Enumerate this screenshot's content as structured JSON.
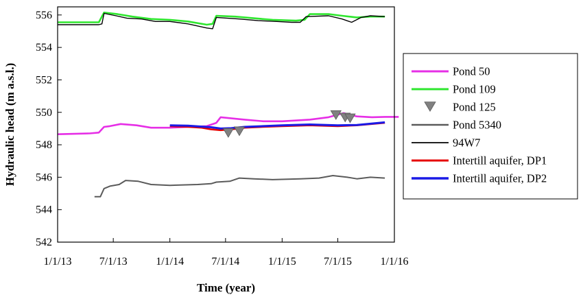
{
  "chart_data": {
    "type": "line",
    "title": "",
    "xlabel": "Time (year)",
    "ylabel": "Hydraulic head (m a.s.l.)",
    "xlim": [
      "2013-01-01",
      "2016-01-01"
    ],
    "ylim": [
      542,
      556.5
    ],
    "x_ticks": [
      "1/1/13",
      "7/1/13",
      "1/1/14",
      "7/1/14",
      "1/1/15",
      "7/1/15",
      "1/1/16"
    ],
    "y_ticks": [
      "542",
      "544",
      "546",
      "548",
      "550",
      "552",
      "554",
      "556"
    ],
    "legend_position": "right",
    "series": [
      {
        "name": "Pond 50",
        "kind": "line",
        "color": "#e62ee6",
        "points": [
          [
            "2013-01-01",
            548.65
          ],
          [
            "2013-04-15",
            548.7
          ],
          [
            "2013-05-15",
            548.75
          ],
          [
            "2013-06-01",
            549.1
          ],
          [
            "2013-06-20",
            549.15
          ],
          [
            "2013-07-25",
            549.28
          ],
          [
            "2013-09-15",
            549.2
          ],
          [
            "2013-11-01",
            549.05
          ],
          [
            "2014-01-01",
            549.05
          ],
          [
            "2014-03-01",
            549.1
          ],
          [
            "2014-05-01",
            549.15
          ],
          [
            "2014-06-01",
            549.35
          ],
          [
            "2014-06-15",
            549.7
          ],
          [
            "2014-09-01",
            549.55
          ],
          [
            "2014-11-01",
            549.45
          ],
          [
            "2015-01-01",
            549.45
          ],
          [
            "2015-04-01",
            549.55
          ],
          [
            "2015-06-01",
            549.7
          ],
          [
            "2015-07-20",
            549.95
          ],
          [
            "2015-09-01",
            549.75
          ],
          [
            "2015-10-20",
            549.7
          ],
          [
            "2015-12-01",
            549.72
          ],
          [
            "2016-01-15",
            549.72
          ]
        ]
      },
      {
        "name": "Pond 109",
        "kind": "line",
        "color": "#2ee62e",
        "points": [
          [
            "2013-01-01",
            555.55
          ],
          [
            "2013-05-15",
            555.55
          ],
          [
            "2013-06-01",
            556.15
          ],
          [
            "2013-07-15",
            556.05
          ],
          [
            "2013-09-01",
            555.9
          ],
          [
            "2013-11-01",
            555.75
          ],
          [
            "2014-01-01",
            555.7
          ],
          [
            "2014-03-01",
            555.6
          ],
          [
            "2014-05-01",
            555.4
          ],
          [
            "2014-05-20",
            555.45
          ],
          [
            "2014-06-01",
            555.95
          ],
          [
            "2014-08-01",
            555.9
          ],
          [
            "2014-10-01",
            555.8
          ],
          [
            "2014-12-01",
            555.7
          ],
          [
            "2015-02-15",
            555.65
          ],
          [
            "2015-03-15",
            555.7
          ],
          [
            "2015-04-01",
            556.05
          ],
          [
            "2015-06-01",
            556.05
          ],
          [
            "2015-07-15",
            555.95
          ],
          [
            "2015-09-01",
            555.85
          ],
          [
            "2015-10-15",
            555.9
          ],
          [
            "2015-12-01",
            555.9
          ]
        ]
      },
      {
        "name": "Pond 125",
        "kind": "marker",
        "color": "#808080",
        "points": [
          [
            "2014-07-10",
            548.75
          ],
          [
            "2014-08-15",
            548.85
          ],
          [
            "2015-06-25",
            549.85
          ],
          [
            "2015-07-25",
            549.7
          ],
          [
            "2015-08-10",
            549.65
          ]
        ]
      },
      {
        "name": "Pond 5340",
        "kind": "line",
        "color": "#5a5a5a",
        "points": [
          [
            "2013-05-01",
            544.8
          ],
          [
            "2013-05-20",
            544.8
          ],
          [
            "2013-06-01",
            545.3
          ],
          [
            "2013-06-20",
            545.45
          ],
          [
            "2013-07-20",
            545.55
          ],
          [
            "2013-08-10",
            545.8
          ],
          [
            "2013-09-20",
            545.75
          ],
          [
            "2013-11-01",
            545.55
          ],
          [
            "2014-01-01",
            545.5
          ],
          [
            "2014-04-01",
            545.55
          ],
          [
            "2014-05-15",
            545.6
          ],
          [
            "2014-06-01",
            545.7
          ],
          [
            "2014-07-15",
            545.75
          ],
          [
            "2014-08-15",
            545.95
          ],
          [
            "2014-10-01",
            545.9
          ],
          [
            "2014-12-01",
            545.85
          ],
          [
            "2015-03-01",
            545.9
          ],
          [
            "2015-05-01",
            545.95
          ],
          [
            "2015-06-15",
            546.1
          ],
          [
            "2015-08-01",
            546.0
          ],
          [
            "2015-09-01",
            545.9
          ],
          [
            "2015-10-15",
            546.0
          ],
          [
            "2015-12-01",
            545.95
          ]
        ]
      },
      {
        "name": "94W7",
        "kind": "line",
        "color": "#000000",
        "points": [
          [
            "2013-01-01",
            555.4
          ],
          [
            "2013-05-15",
            555.4
          ],
          [
            "2013-05-25",
            555.45
          ],
          [
            "2013-06-01",
            556.1
          ],
          [
            "2013-07-10",
            555.95
          ],
          [
            "2013-08-15",
            555.8
          ],
          [
            "2013-10-01",
            555.75
          ],
          [
            "2013-11-15",
            555.6
          ],
          [
            "2014-01-01",
            555.6
          ],
          [
            "2014-03-01",
            555.45
          ],
          [
            "2014-05-01",
            555.2
          ],
          [
            "2014-05-20",
            555.15
          ],
          [
            "2014-06-01",
            555.85
          ],
          [
            "2014-08-15",
            555.75
          ],
          [
            "2014-10-15",
            555.65
          ],
          [
            "2014-12-15",
            555.6
          ],
          [
            "2015-02-01",
            555.55
          ],
          [
            "2015-03-01",
            555.55
          ],
          [
            "2015-03-20",
            555.9
          ],
          [
            "2015-06-01",
            555.95
          ],
          [
            "2015-07-15",
            555.75
          ],
          [
            "2015-08-15",
            555.55
          ],
          [
            "2015-09-15",
            555.85
          ],
          [
            "2015-10-15",
            555.95
          ],
          [
            "2015-12-01",
            555.9
          ]
        ]
      },
      {
        "name": "Intertill aquifer, DP1",
        "kind": "line",
        "color": "#e60000",
        "points": [
          [
            "2014-01-01",
            549.15
          ],
          [
            "2014-03-01",
            549.1
          ],
          [
            "2014-04-15",
            549.05
          ],
          [
            "2014-05-15",
            548.95
          ],
          [
            "2014-06-15",
            548.9
          ],
          [
            "2014-07-20",
            548.95
          ],
          [
            "2014-09-01",
            549.05
          ],
          [
            "2014-11-01",
            549.1
          ],
          [
            "2015-01-01",
            549.15
          ],
          [
            "2015-04-01",
            549.2
          ],
          [
            "2015-07-01",
            549.15
          ],
          [
            "2015-09-01",
            549.2
          ],
          [
            "2015-12-01",
            549.35
          ]
        ]
      },
      {
        "name": "Intertill aquifer, DP2",
        "kind": "line",
        "color": "#1a1ae6",
        "points": [
          [
            "2014-01-01",
            549.2
          ],
          [
            "2014-03-01",
            549.18
          ],
          [
            "2014-04-15",
            549.12
          ],
          [
            "2014-05-15",
            549.08
          ],
          [
            "2014-06-15",
            549.0
          ],
          [
            "2014-07-20",
            549.02
          ],
          [
            "2014-09-01",
            549.1
          ],
          [
            "2014-11-01",
            549.15
          ],
          [
            "2015-01-01",
            549.2
          ],
          [
            "2015-04-01",
            549.25
          ],
          [
            "2015-07-01",
            549.2
          ],
          [
            "2015-09-01",
            549.22
          ],
          [
            "2015-12-01",
            549.38
          ]
        ]
      }
    ]
  }
}
